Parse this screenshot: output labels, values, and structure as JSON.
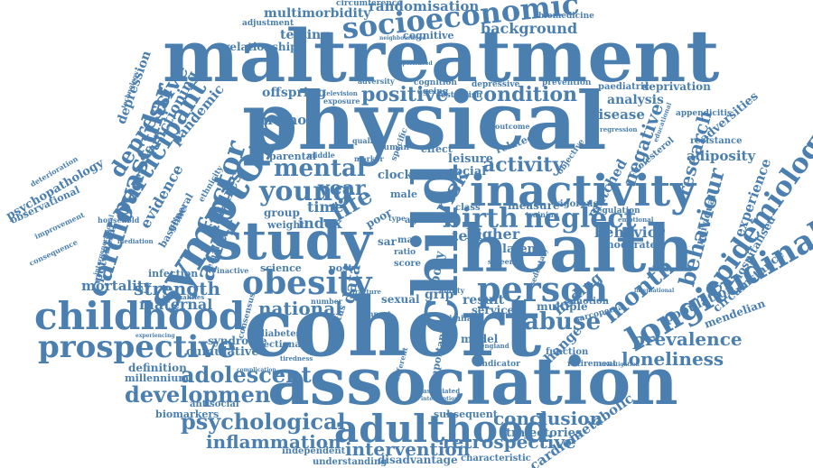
{
  "color": "#4a7fb0",
  "background": "#ffffff",
  "words": [
    {
      "id": "w0",
      "text": "maltreatment"
    },
    {
      "id": "w1",
      "text": "physical"
    },
    {
      "id": "w2",
      "text": "cohort"
    },
    {
      "id": "w3",
      "text": "association"
    },
    {
      "id": "w4",
      "text": "health"
    },
    {
      "id": "w5",
      "text": "study"
    },
    {
      "id": "w6",
      "text": "child"
    },
    {
      "id": "w7",
      "text": "symptom"
    },
    {
      "id": "w8",
      "text": "inactivity"
    },
    {
      "id": "w9",
      "text": "childhood"
    },
    {
      "id": "w10",
      "text": "adulthood"
    },
    {
      "id": "w11",
      "text": "prospective"
    },
    {
      "id": "w12",
      "text": "longitudinal"
    },
    {
      "id": "w13",
      "text": "obesity"
    },
    {
      "id": "w14",
      "text": "person"
    },
    {
      "id": "w15",
      "text": "socioeconomic"
    },
    {
      "id": "w16",
      "text": "cardiovascular"
    },
    {
      "id": "w17",
      "text": "epidemiology"
    },
    {
      "id": "w18",
      "text": "birth"
    },
    {
      "id": "w19",
      "text": "neglect"
    },
    {
      "id": "w20",
      "text": "young"
    },
    {
      "id": "w21",
      "text": "mental"
    },
    {
      "id": "w22",
      "text": "factor"
    },
    {
      "id": "w23",
      "text": "adult"
    },
    {
      "id": "w24",
      "text": "participant"
    },
    {
      "id": "w25",
      "text": "depressive"
    },
    {
      "id": "w26",
      "text": "development"
    },
    {
      "id": "w27",
      "text": "psychological"
    },
    {
      "id": "w28",
      "text": "adolescent"
    },
    {
      "id": "w29",
      "text": "intervention"
    },
    {
      "id": "w30",
      "text": "inflammation"
    },
    {
      "id": "w31",
      "text": "retrospective"
    },
    {
      "id": "w32",
      "text": "conclusion"
    },
    {
      "id": "w33",
      "text": "loneliness"
    },
    {
      "id": "w34",
      "text": "prevalence"
    },
    {
      "id": "w35",
      "text": "abuse"
    },
    {
      "id": "w36",
      "text": "month"
    },
    {
      "id": "w37",
      "text": "behaviour"
    },
    {
      "id": "w38",
      "text": "strength"
    },
    {
      "id": "w39",
      "text": "national"
    },
    {
      "id": "w40",
      "text": "positive"
    },
    {
      "id": "w41",
      "text": "condition"
    },
    {
      "id": "w42",
      "text": "background"
    },
    {
      "id": "w43",
      "text": "randomisation"
    },
    {
      "id": "w44",
      "text": "multimorbidity"
    },
    {
      "id": "w45",
      "text": "mortality"
    },
    {
      "id": "w46",
      "text": "risk"
    },
    {
      "id": "w47",
      "text": "activity"
    },
    {
      "id": "w48",
      "text": "research"
    },
    {
      "id": "w49",
      "text": "negative"
    },
    {
      "id": "w50",
      "text": "year"
    },
    {
      "id": "w51",
      "text": "life"
    },
    {
      "id": "w52",
      "text": "time"
    },
    {
      "id": "w53",
      "text": "evidence"
    },
    {
      "id": "w54",
      "text": "functioning"
    },
    {
      "id": "w55",
      "text": "pandemic"
    },
    {
      "id": "w56",
      "text": "depression"
    },
    {
      "id": "w57",
      "text": "studies"
    },
    {
      "id": "w58",
      "text": "behavior"
    },
    {
      "id": "w59",
      "text": "adiposity"
    },
    {
      "id": "w60",
      "text": "experience"
    },
    {
      "id": "w61",
      "text": "population"
    },
    {
      "id": "w62",
      "text": "circumstance"
    },
    {
      "id": "w63",
      "text": "mendelian"
    },
    {
      "id": "w64",
      "text": "hospitalised"
    },
    {
      "id": "w65",
      "text": "cardiometabolic"
    },
    {
      "id": "w66",
      "text": "trajectories"
    },
    {
      "id": "w67",
      "text": "biomarkers"
    },
    {
      "id": "w68",
      "text": "antisocial"
    },
    {
      "id": "w69",
      "text": "millennium"
    },
    {
      "id": "w70",
      "text": "definition"
    },
    {
      "id": "w71",
      "text": "cumulative"
    },
    {
      "id": "w72",
      "text": "syndrome"
    },
    {
      "id": "w73",
      "text": "maternal"
    },
    {
      "id": "w74",
      "text": "infection"
    },
    {
      "id": "w75",
      "text": "potential"
    },
    {
      "id": "w76",
      "text": "psychopathology"
    },
    {
      "id": "w77",
      "text": "observational"
    },
    {
      "id": "w78",
      "text": "deterioration"
    },
    {
      "id": "w79",
      "text": "testing"
    },
    {
      "id": "w80",
      "text": "relationship"
    },
    {
      "id": "w81",
      "text": "adjustment"
    },
    {
      "id": "w82",
      "text": "circumference"
    },
    {
      "id": "w83",
      "text": "biomedicine"
    },
    {
      "id": "w84",
      "text": "cognitive"
    },
    {
      "id": "w85",
      "text": "paediatric"
    },
    {
      "id": "w86",
      "text": "deprivation"
    },
    {
      "id": "w87",
      "text": "analysis"
    },
    {
      "id": "w88",
      "text": "disease"
    },
    {
      "id": "w89",
      "text": "appendicitis"
    },
    {
      "id": "w90",
      "text": "adversities"
    },
    {
      "id": "w91",
      "text": "resistance"
    },
    {
      "id": "w92",
      "text": "cholesterol"
    },
    {
      "id": "w93",
      "text": "individual"
    },
    {
      "id": "w94",
      "text": "moderate"
    },
    {
      "id": "w95",
      "text": "matched"
    },
    {
      "id": "w96",
      "text": "finding"
    },
    {
      "id": "w97",
      "text": "change"
    },
    {
      "id": "w98",
      "text": "multiple"
    },
    {
      "id": "w99",
      "text": "service"
    },
    {
      "id": "w100",
      "text": "model"
    },
    {
      "id": "w101",
      "text": "function"
    },
    {
      "id": "w102",
      "text": "retirement"
    },
    {
      "id": "w103",
      "text": "indicator"
    },
    {
      "id": "w104",
      "text": "subsequent"
    },
    {
      "id": "w105",
      "text": "disadvantage"
    },
    {
      "id": "w106",
      "text": "understanding"
    },
    {
      "id": "w107",
      "text": "independent"
    },
    {
      "id": "w108",
      "text": "characteristic"
    },
    {
      "id": "w109",
      "text": "diabetes"
    },
    {
      "id": "w110",
      "text": "sectional"
    },
    {
      "id": "w111",
      "text": "science"
    },
    {
      "id": "w112",
      "text": "data"
    },
    {
      "id": "w113",
      "text": "body"
    },
    {
      "id": "w114",
      "text": "grip"
    },
    {
      "id": "w115",
      "text": "sexual"
    },
    {
      "id": "w116",
      "text": "post"
    },
    {
      "id": "w117",
      "text": "score"
    },
    {
      "id": "w118",
      "text": "index"
    },
    {
      "id": "w119",
      "text": "group"
    },
    {
      "id": "w120",
      "text": "weight"
    },
    {
      "id": "w121",
      "text": "method"
    },
    {
      "id": "w122",
      "text": "offspring"
    },
    {
      "id": "w123",
      "text": "parental"
    },
    {
      "id": "w124",
      "text": "leisure"
    },
    {
      "id": "w125",
      "text": "social"
    },
    {
      "id": "w126",
      "text": "test"
    },
    {
      "id": "w127",
      "text": "higher"
    },
    {
      "id": "w128",
      "text": "measure"
    },
    {
      "id": "w129",
      "text": "class"
    },
    {
      "id": "w130",
      "text": "vigorous"
    },
    {
      "id": "w131",
      "text": "training"
    },
    {
      "id": "w132",
      "text": "regulation"
    },
    {
      "id": "w133",
      "text": "effect"
    },
    {
      "id": "w134",
      "text": "clock"
    },
    {
      "id": "w135",
      "text": "poor"
    },
    {
      "id": "w136",
      "text": "male"
    },
    {
      "id": "w137",
      "text": "aged"
    },
    {
      "id": "w138",
      "text": "type"
    },
    {
      "id": "w139",
      "text": "sar"
    },
    {
      "id": "w140",
      "text": "mas"
    },
    {
      "id": "w141",
      "text": "ratio"
    },
    {
      "id": "w142",
      "text": "related"
    },
    {
      "id": "w143",
      "text": "cognition"
    },
    {
      "id": "w144",
      "text": "depressive"
    },
    {
      "id": "w145",
      "text": "ageing"
    },
    {
      "id": "w146",
      "text": "establish"
    },
    {
      "id": "w147",
      "text": "prevention"
    },
    {
      "id": "w148",
      "text": "adversity"
    },
    {
      "id": "w149",
      "text": "television"
    },
    {
      "id": "w150",
      "text": "exposure"
    },
    {
      "id": "w151",
      "text": "technology"
    },
    {
      "id": "w152",
      "text": "household"
    },
    {
      "id": "w153",
      "text": "baseline"
    },
    {
      "id": "w154",
      "text": "general"
    },
    {
      "id": "w155",
      "text": "female"
    },
    {
      "id": "w156",
      "text": "ethnicity"
    },
    {
      "id": "w157",
      "text": "mediation"
    },
    {
      "id": "w158",
      "text": "consequence"
    },
    {
      "id": "w159",
      "text": "improvement"
    },
    {
      "id": "w160",
      "text": "intergenerational"
    },
    {
      "id": "w161",
      "text": "experiencing"
    },
    {
      "id": "w162",
      "text": "inequalities"
    },
    {
      "id": "w163",
      "text": "inactive"
    },
    {
      "id": "w164",
      "text": "number"
    },
    {
      "id": "w165",
      "text": "similar"
    },
    {
      "id": "w166",
      "text": "result"
    },
    {
      "id": "w167",
      "text": "latent"
    },
    {
      "id": "w168",
      "text": "emotion"
    },
    {
      "id": "w169",
      "text": "sarcopenia"
    },
    {
      "id": "w170",
      "text": "screen"
    },
    {
      "id": "w171",
      "text": "important"
    },
    {
      "id": "w172",
      "text": "associated"
    },
    {
      "id": "w173",
      "text": "impact"
    },
    {
      "id": "w174",
      "text": "status"
    },
    {
      "id": "w175",
      "text": "review"
    },
    {
      "id": "w176",
      "text": "ability"
    },
    {
      "id": "w177",
      "text": "human"
    },
    {
      "id": "w178",
      "text": "quality"
    },
    {
      "id": "w179",
      "text": "middle"
    },
    {
      "id": "w180",
      "text": "marker"
    },
    {
      "id": "w181",
      "text": "specific"
    },
    {
      "id": "w182",
      "text": "outcome"
    },
    {
      "id": "w183",
      "text": "objective"
    },
    {
      "id": "w184",
      "text": "regression"
    },
    {
      "id": "w185",
      "text": "emotional"
    },
    {
      "id": "w186",
      "text": "neighbourhood"
    },
    {
      "id": "w187",
      "text": "experienced"
    },
    {
      "id": "w188",
      "text": "complication"
    },
    {
      "id": "w189",
      "text": "tiredness"
    },
    {
      "id": "w190",
      "text": "interruption"
    },
    {
      "id": "w191",
      "text": "different"
    },
    {
      "id": "w192",
      "text": "sedentary"
    },
    {
      "id": "w193",
      "text": "england"
    },
    {
      "id": "w194",
      "text": "consensus"
    },
    {
      "id": "w195",
      "text": "fracture"
    },
    {
      "id": "w196",
      "text": "investigation"
    },
    {
      "id": "w197",
      "text": "international"
    },
    {
      "id": "w198",
      "text": "educational"
    }
  ]
}
